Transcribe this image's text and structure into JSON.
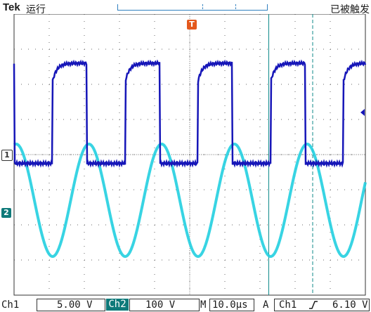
{
  "header": {
    "brand": "Tek",
    "run_state": "运行",
    "trigger_status": "已被触发"
  },
  "markers": {
    "ch1": "1",
    "ch2": "2",
    "trigger_position": "T",
    "trigger_top": "T"
  },
  "status": {
    "ch1_label": "Ch1",
    "ch1_scale": "5.00 V",
    "ch2_label": "Ch2",
    "ch2_scale": "100 V",
    "timebase_label": "M",
    "timebase_value": "10.0µs",
    "trigger_label": "A",
    "trigger_source": "Ch1",
    "trigger_slope_icon": "rising-edge-icon",
    "trigger_level": "6.10 V"
  },
  "colors": {
    "ch1": "#1616b8",
    "ch2": "#22cfe0",
    "grid": "#6a6a6a",
    "trigger": "#e4581c",
    "cursor": "#0f8a8a"
  },
  "chart_data": {
    "type": "line",
    "xlabel": "",
    "ylabel": "",
    "grid": true,
    "divisions_x": 10,
    "divisions_y": 8,
    "series": [
      {
        "name": "Ch1",
        "shape": "square",
        "period_div": 2.07,
        "high_div": 2.6,
        "low_div": -0.25
      },
      {
        "name": "Ch2",
        "shape": "sine",
        "period_div": 2.07,
        "amplitude_div": 1.6,
        "offset_div": -1.3
      }
    ],
    "cursors_div": [
      7.25,
      8.5
    ]
  }
}
